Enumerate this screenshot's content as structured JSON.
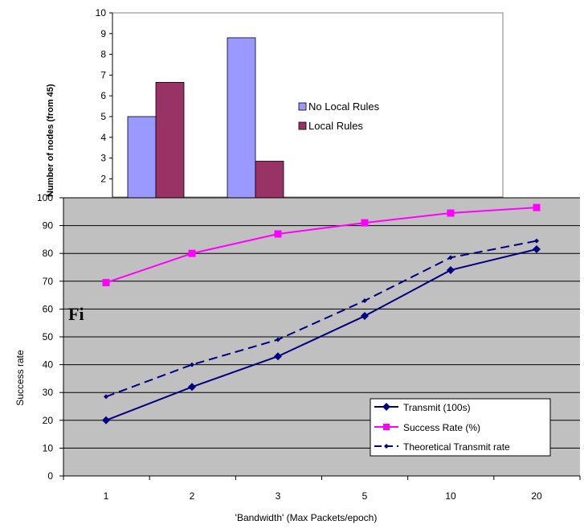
{
  "chart_data": [
    {
      "type": "bar",
      "ylabel": "Number of nodes (from 45)",
      "ylim": [
        0,
        10
      ],
      "yticks": [
        "2",
        "3",
        "4",
        "5",
        "6",
        "7",
        "8",
        "9",
        "10"
      ],
      "series": [
        {
          "name": "No Local Rules",
          "values": [
            5.0,
            8.8
          ],
          "color": "#9999ff"
        },
        {
          "name": "Local Rules",
          "values": [
            6.65,
            2.85
          ],
          "color": "#993366"
        }
      ],
      "legend_position": "right"
    },
    {
      "type": "line",
      "xlabel": "'Bandwidth' (Max Packets/epoch)",
      "ylabel": "Success rate",
      "categories": [
        "1",
        "2",
        "3",
        "5",
        "10",
        "20"
      ],
      "ylim": [
        0,
        100
      ],
      "yticks": [
        "0",
        "10",
        "20",
        "30",
        "40",
        "50",
        "60",
        "70",
        "80",
        "90",
        "100"
      ],
      "grid": true,
      "background": "#c0c0c0",
      "legend_position": "bottom-right",
      "series": [
        {
          "name": "Transmit (100s)",
          "values": [
            20,
            32,
            43,
            57.5,
            74,
            81.5
          ],
          "color": "#000080",
          "marker": "diamond",
          "dash": "solid"
        },
        {
          "name": "Success Rate (%)",
          "values": [
            69.5,
            80,
            87,
            91,
            94.5,
            96.5
          ],
          "color": "#ff00ff",
          "marker": "square",
          "dash": "solid"
        },
        {
          "name": "Theoretical Transmit rate",
          "values": [
            28.5,
            40,
            49,
            63,
            78.5,
            84.5
          ],
          "color": "#000080",
          "marker": "small-diamond",
          "dash": "dashed"
        }
      ]
    }
  ],
  "caption_fragment": "Fi"
}
